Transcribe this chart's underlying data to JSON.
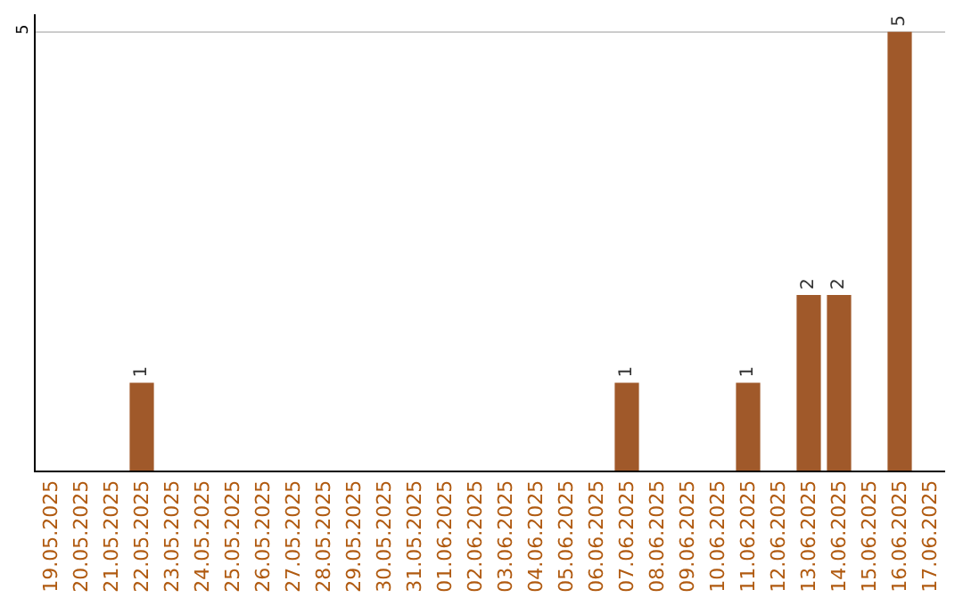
{
  "chart_data": {
    "type": "bar",
    "categories": [
      "19.05.2025",
      "20.05.2025",
      "21.05.2025",
      "22.05.2025",
      "23.05.2025",
      "24.05.2025",
      "25.05.2025",
      "26.05.2025",
      "27.05.2025",
      "28.05.2025",
      "29.05.2025",
      "30.05.2025",
      "31.05.2025",
      "01.06.2025",
      "02.06.2025",
      "03.06.2025",
      "04.06.2025",
      "05.06.2025",
      "06.06.2025",
      "07.06.2025",
      "08.06.2025",
      "09.06.2025",
      "10.06.2025",
      "11.06.2025",
      "12.06.2025",
      "13.06.2025",
      "14.06.2025",
      "15.06.2025",
      "16.06.2025",
      "17.06.2025"
    ],
    "values": [
      0,
      0,
      0,
      1,
      0,
      0,
      0,
      0,
      0,
      0,
      0,
      0,
      0,
      0,
      0,
      0,
      0,
      0,
      0,
      1,
      0,
      0,
      0,
      1,
      0,
      2,
      2,
      0,
      5,
      0
    ],
    "value_labels": [
      null,
      null,
      null,
      "1",
      null,
      null,
      null,
      null,
      null,
      null,
      null,
      null,
      null,
      null,
      null,
      null,
      null,
      null,
      null,
      "1",
      null,
      null,
      null,
      "1",
      null,
      "2",
      "2",
      null,
      "5",
      null
    ],
    "color": "#a0592a",
    "ylim": [
      0,
      5.2
    ],
    "yticks": [
      5
    ],
    "grid": "y",
    "legend": false
  }
}
